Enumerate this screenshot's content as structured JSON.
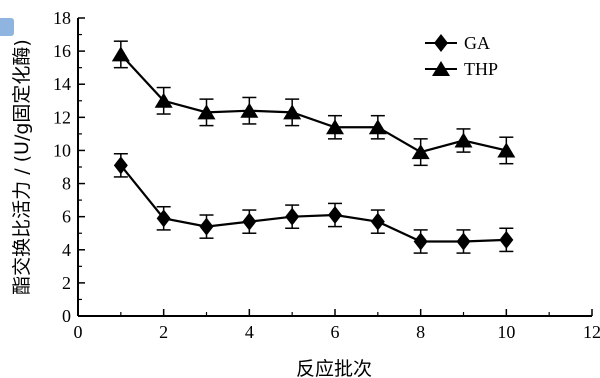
{
  "chart_data": {
    "type": "line",
    "xlabel": "反应批次",
    "ylabel": "酯交换比活力 / (U/g固定化酶)",
    "xlim": [
      0,
      12
    ],
    "ylim": [
      0,
      18
    ],
    "x_ticks": [
      "0",
      "2",
      "4",
      "6",
      "8",
      "10",
      "12"
    ],
    "y_ticks": [
      "0",
      "2",
      "4",
      "6",
      "8",
      "10",
      "12",
      "14",
      "16",
      "18"
    ],
    "grid": false,
    "legend_position": "top-right",
    "x": [
      1,
      2,
      3,
      4,
      5,
      6,
      7,
      8,
      9,
      10
    ],
    "series": [
      {
        "name": "GA",
        "marker": "diamond",
        "values": [
          9.1,
          5.9,
          5.4,
          5.7,
          6.0,
          6.1,
          5.7,
          4.5,
          4.5,
          4.6
        ],
        "error": [
          0.7,
          0.7,
          0.7,
          0.7,
          0.7,
          0.7,
          0.7,
          0.7,
          0.7,
          0.7
        ]
      },
      {
        "name": "THP",
        "marker": "triangle",
        "values": [
          15.8,
          13.0,
          12.3,
          12.4,
          12.3,
          11.4,
          11.4,
          9.9,
          10.6,
          10.0
        ],
        "error": [
          0.8,
          0.8,
          0.8,
          0.8,
          0.8,
          0.7,
          0.7,
          0.8,
          0.7,
          0.8
        ]
      }
    ]
  }
}
